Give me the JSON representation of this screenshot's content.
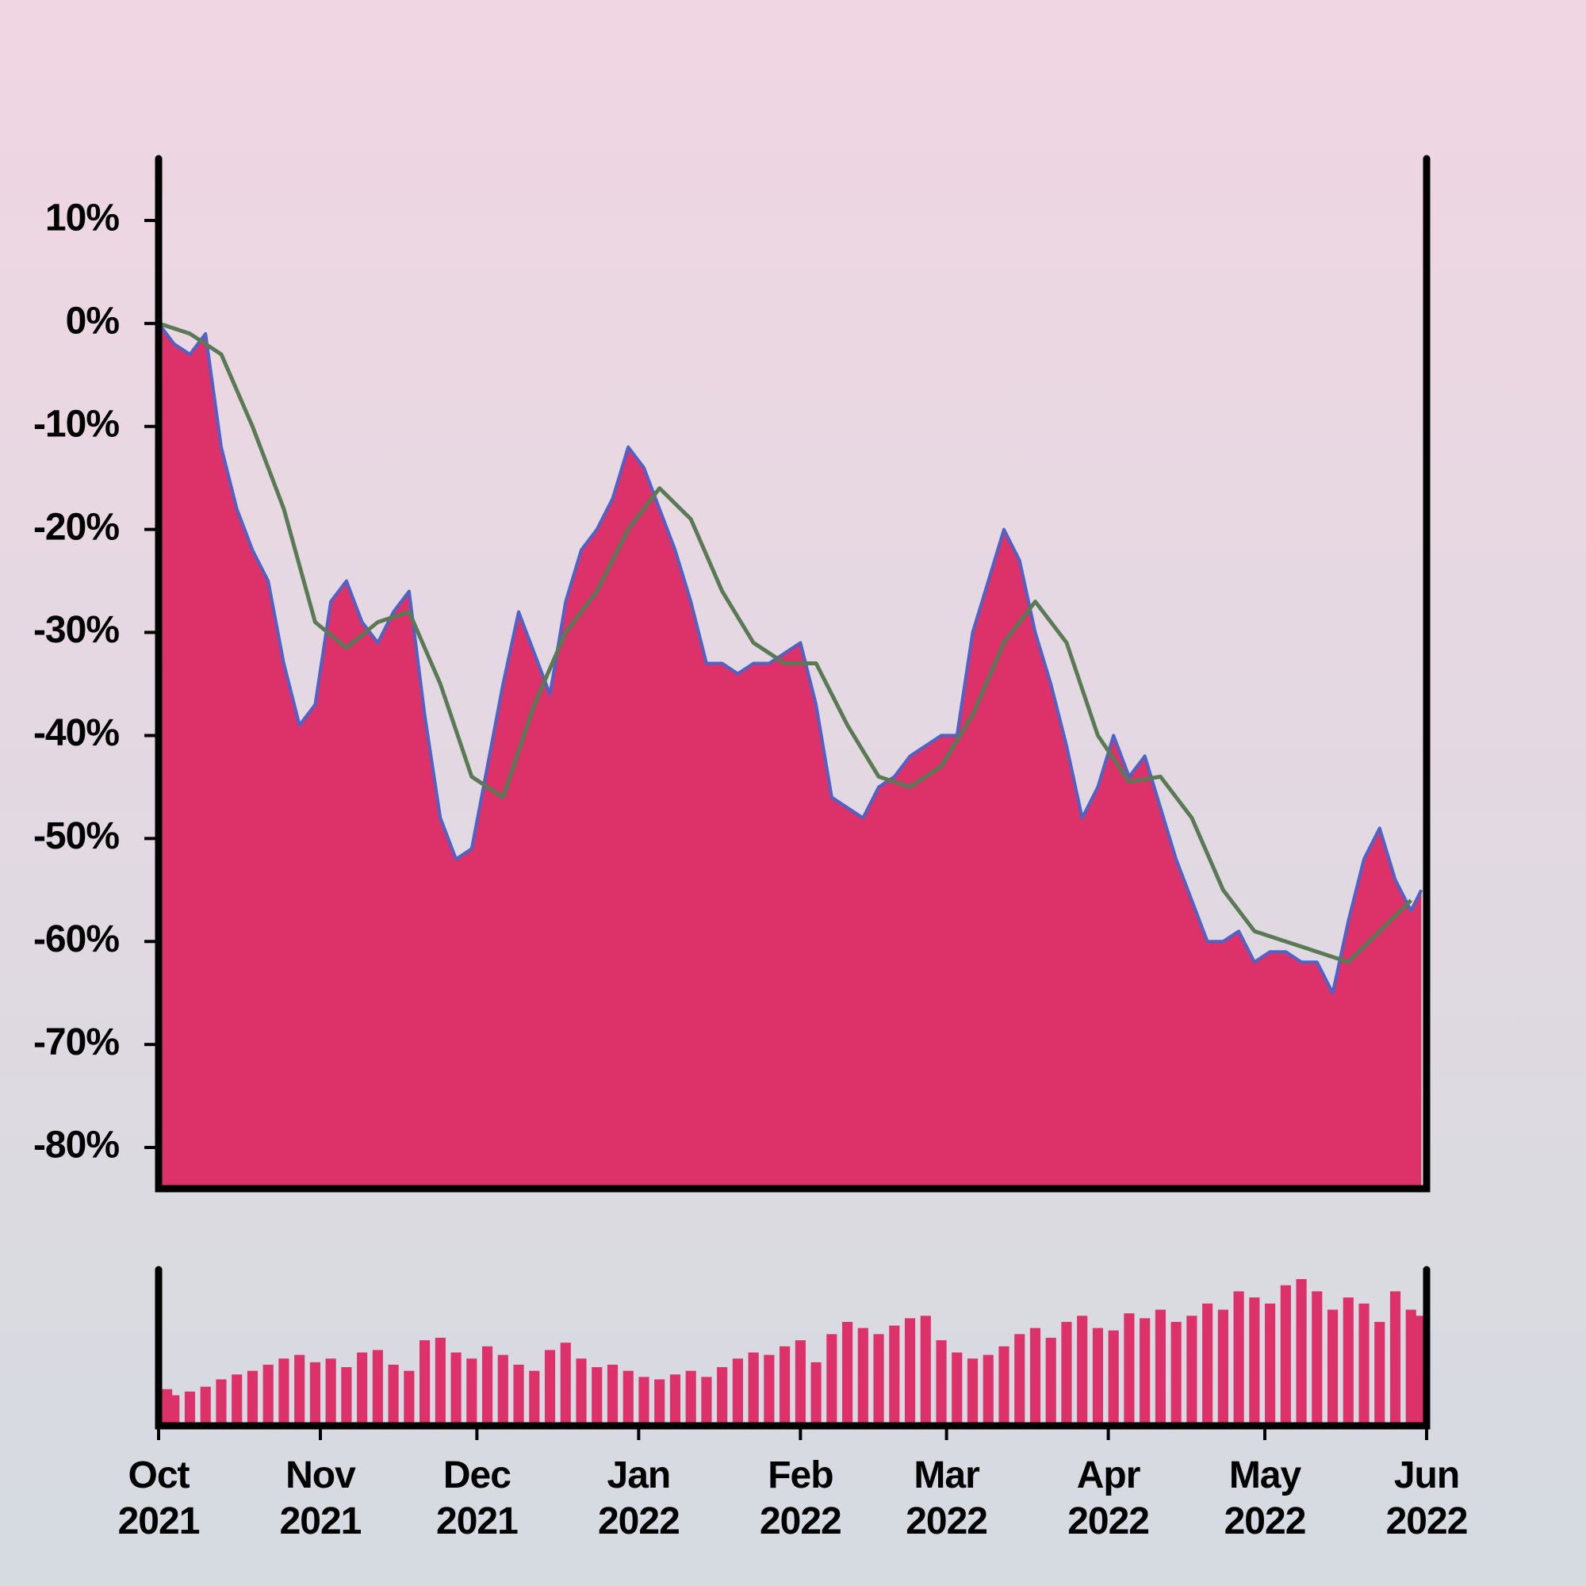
{
  "chart_data": [
    {
      "type": "area",
      "x": [
        0,
        3,
        6,
        9,
        12,
        15,
        18,
        21,
        24,
        27,
        30,
        33,
        36,
        39,
        42,
        45,
        48,
        51,
        54,
        57,
        60,
        63,
        66,
        69,
        72,
        75,
        78,
        81,
        84,
        87,
        90,
        93,
        96,
        99,
        102,
        105,
        108,
        111,
        114,
        117,
        120,
        123,
        126,
        129,
        132,
        135,
        138,
        141,
        144,
        147,
        150,
        153,
        156,
        159,
        162,
        165,
        168,
        171,
        174,
        177,
        180,
        183,
        186,
        189,
        192,
        195,
        198,
        201,
        204,
        207,
        210,
        213,
        216,
        219,
        222,
        225,
        228,
        231,
        234,
        237,
        240,
        242
      ],
      "values": [
        0,
        -2,
        -3,
        -1,
        -12,
        -18,
        -22,
        -25,
        -33,
        -39,
        -37,
        -27,
        -25,
        -29,
        -31,
        -28,
        -26,
        -38,
        -48,
        -52,
        -51,
        -43,
        -35,
        -28,
        -32,
        -36,
        -27,
        -22,
        -20,
        -17,
        -12,
        -14,
        -18,
        -22,
        -27,
        -33,
        -33,
        -34,
        -33,
        -33,
        -32,
        -31,
        -37,
        -46,
        -47,
        -48,
        -45,
        -44,
        -42,
        -41,
        -40,
        -40,
        -30,
        -25,
        -20,
        -23,
        -30,
        -35,
        -41,
        -48,
        -45,
        -40,
        -44,
        -42,
        -47,
        -52,
        -56,
        -60,
        -60,
        -59,
        -62,
        -61,
        -61,
        -62,
        -62,
        -65,
        -58,
        -52,
        -49,
        -54,
        -57,
        -55
      ],
      "color": "#dc3169",
      "line_color": "#4f63c4",
      "moving_average": {
        "color": "#5a7a55",
        "x": [
          0,
          6,
          12,
          18,
          24,
          30,
          36,
          42,
          48,
          54,
          60,
          66,
          72,
          78,
          84,
          90,
          96,
          102,
          108,
          114,
          120,
          126,
          132,
          138,
          144,
          150,
          156,
          162,
          168,
          174,
          180,
          186,
          192,
          198,
          204,
          210,
          216,
          222,
          228,
          234,
          240
        ],
        "values": [
          0,
          -1,
          -3,
          -10,
          -18,
          -29,
          -31.5,
          -29,
          -28,
          -35,
          -44,
          -46,
          -37,
          -30,
          -26,
          -20,
          -16,
          -19,
          -26,
          -31,
          -33,
          -33,
          -39,
          -44,
          -45,
          -43,
          -38,
          -31,
          -27,
          -31,
          -40,
          -44.5,
          -44,
          -48,
          -55,
          -59,
          -60,
          -61,
          -62,
          -59,
          -56
        ]
      },
      "xlim": [
        0,
        243
      ],
      "ylim": [
        -84,
        16
      ],
      "yticks": [
        {
          "value": 10,
          "label": "10%"
        },
        {
          "value": 0,
          "label": "0%"
        },
        {
          "value": -10,
          "label": "-10%"
        },
        {
          "value": -20,
          "label": "-20%"
        },
        {
          "value": -30,
          "label": "-30%"
        },
        {
          "value": -40,
          "label": "-40%"
        },
        {
          "value": -50,
          "label": "-50%"
        },
        {
          "value": -60,
          "label": "-60%"
        },
        {
          "value": -70,
          "label": "-70%"
        },
        {
          "value": -80,
          "label": "-80%"
        }
      ]
    },
    {
      "type": "bar",
      "x": [
        0,
        3,
        6,
        9,
        12,
        15,
        18,
        21,
        24,
        27,
        30,
        33,
        36,
        39,
        42,
        45,
        48,
        51,
        54,
        57,
        60,
        63,
        66,
        69,
        72,
        75,
        78,
        81,
        84,
        87,
        90,
        93,
        96,
        99,
        102,
        105,
        108,
        111,
        114,
        117,
        120,
        123,
        126,
        129,
        132,
        135,
        138,
        141,
        144,
        147,
        150,
        153,
        156,
        159,
        162,
        165,
        168,
        171,
        174,
        177,
        180,
        183,
        186,
        189,
        192,
        195,
        198,
        201,
        204,
        207,
        210,
        213,
        216,
        219,
        222,
        225,
        228,
        231,
        234,
        237,
        240,
        242
      ],
      "values": [
        30,
        25,
        28,
        32,
        38,
        42,
        45,
        50,
        55,
        58,
        52,
        55,
        48,
        60,
        62,
        50,
        45,
        70,
        72,
        60,
        55,
        65,
        58,
        50,
        45,
        62,
        68,
        55,
        48,
        50,
        45,
        40,
        38,
        42,
        45,
        40,
        48,
        55,
        60,
        58,
        65,
        70,
        52,
        75,
        85,
        80,
        75,
        82,
        88,
        90,
        70,
        60,
        55,
        58,
        65,
        75,
        80,
        72,
        85,
        90,
        80,
        78,
        92,
        88,
        95,
        85,
        90,
        100,
        95,
        110,
        105,
        100,
        115,
        120,
        110,
        95,
        105,
        100,
        85,
        110,
        95,
        90
      ],
      "color": "#dc3169",
      "xlim": [
        0,
        243
      ],
      "xticks": [
        {
          "value": 0,
          "label": "Oct\n2021"
        },
        {
          "value": 31,
          "label": "Nov\n2021"
        },
        {
          "value": 61,
          "label": "Dec\n2021"
        },
        {
          "value": 92,
          "label": "Jan\n2022"
        },
        {
          "value": 123,
          "label": "Feb\n2022"
        },
        {
          "value": 151,
          "label": "Mar\n2022"
        },
        {
          "value": 182,
          "label": "Apr\n2022"
        },
        {
          "value": 212,
          "label": "May\n2022"
        },
        {
          "value": 243,
          "label": "Jun\n2022"
        }
      ]
    }
  ]
}
